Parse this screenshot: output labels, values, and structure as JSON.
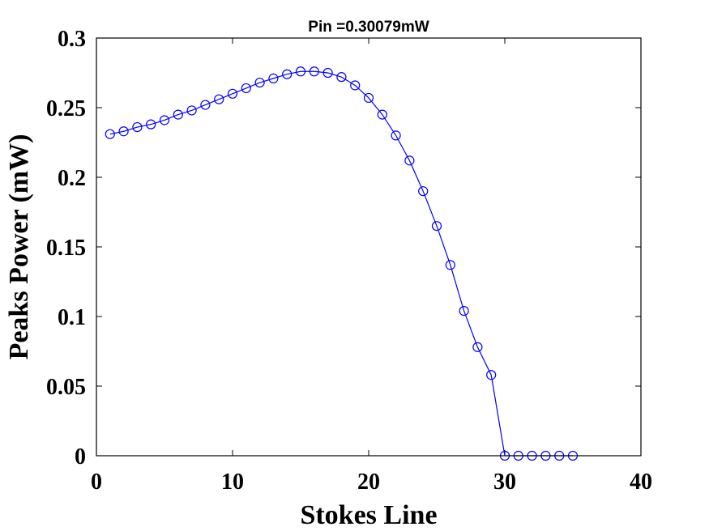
{
  "chart_data": {
    "type": "line",
    "title": "Pin =0.30079mW",
    "xlabel": "Stokes Line",
    "ylabel": "Peaks Power (mW)",
    "xlim": [
      0,
      40
    ],
    "ylim": [
      0,
      0.3
    ],
    "xticks": [
      0,
      10,
      20,
      30,
      40
    ],
    "xtick_labels": [
      "0",
      "10",
      "20",
      "30",
      "40"
    ],
    "yticks": [
      0,
      0.05,
      0.1,
      0.15,
      0.2,
      0.25,
      0.3
    ],
    "ytick_labels": [
      "0",
      "0.05",
      "0.1",
      "0.15",
      "0.2",
      "0.25",
      "0.3"
    ],
    "grid": false,
    "line_color": "#0000ff",
    "marker": "circle",
    "series": [
      {
        "x": [
          1,
          2,
          3,
          4,
          5,
          6,
          7,
          8,
          9,
          10,
          11,
          12,
          13,
          14,
          15,
          16,
          17,
          18,
          19,
          20,
          21,
          22,
          23,
          24,
          25,
          26,
          27,
          28,
          29,
          30,
          31,
          32,
          33,
          34,
          35
        ],
        "values": [
          0.231,
          0.233,
          0.236,
          0.238,
          0.241,
          0.245,
          0.248,
          0.252,
          0.256,
          0.26,
          0.264,
          0.268,
          0.271,
          0.274,
          0.276,
          0.276,
          0.275,
          0.272,
          0.266,
          0.257,
          0.245,
          0.23,
          0.212,
          0.19,
          0.165,
          0.137,
          0.104,
          0.078,
          0.058,
          0,
          0,
          0,
          0,
          0,
          0
        ]
      }
    ]
  }
}
